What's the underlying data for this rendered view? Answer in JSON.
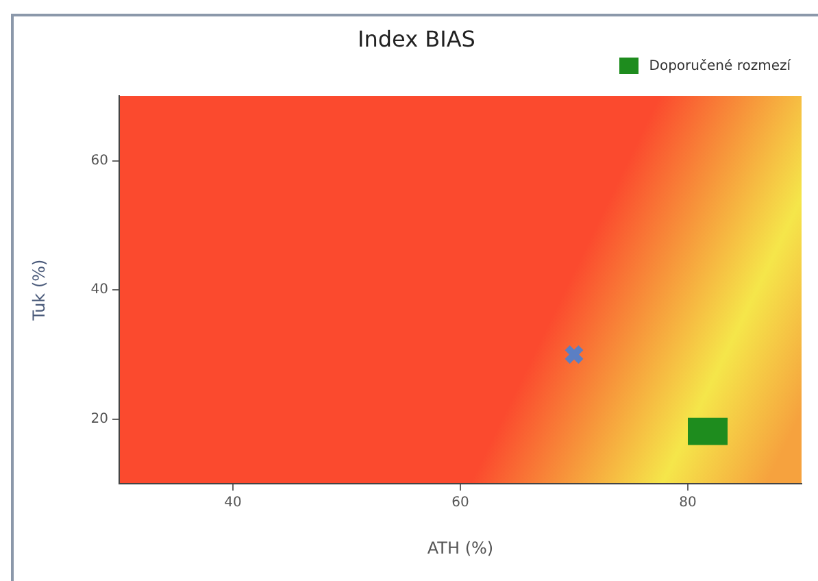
{
  "chart_data": {
    "type": "scatter",
    "title": "Index BIAS",
    "xlabel": "ATH (%)",
    "ylabel": "Tuk (%)",
    "xlim": [
      30,
      90
    ],
    "ylim": [
      10,
      70
    ],
    "xticks": [
      40,
      60,
      80
    ],
    "yticks": [
      20,
      40,
      60
    ],
    "grid": false,
    "legend": "top right",
    "series": [
      {
        "type": "scatter",
        "color": "#5b7fc4",
        "x": [
          70
        ],
        "values": [
          30
        ],
        "marker": "cross"
      },
      {
        "name": "Doporučené rozmezí",
        "type": "line",
        "color": "#1e8c1e",
        "x": [
          80,
          83.5
        ],
        "values": [
          20,
          20
        ],
        "lower": [
          16,
          16
        ],
        "upper": [
          20,
          20
        ]
      }
    ]
  }
}
